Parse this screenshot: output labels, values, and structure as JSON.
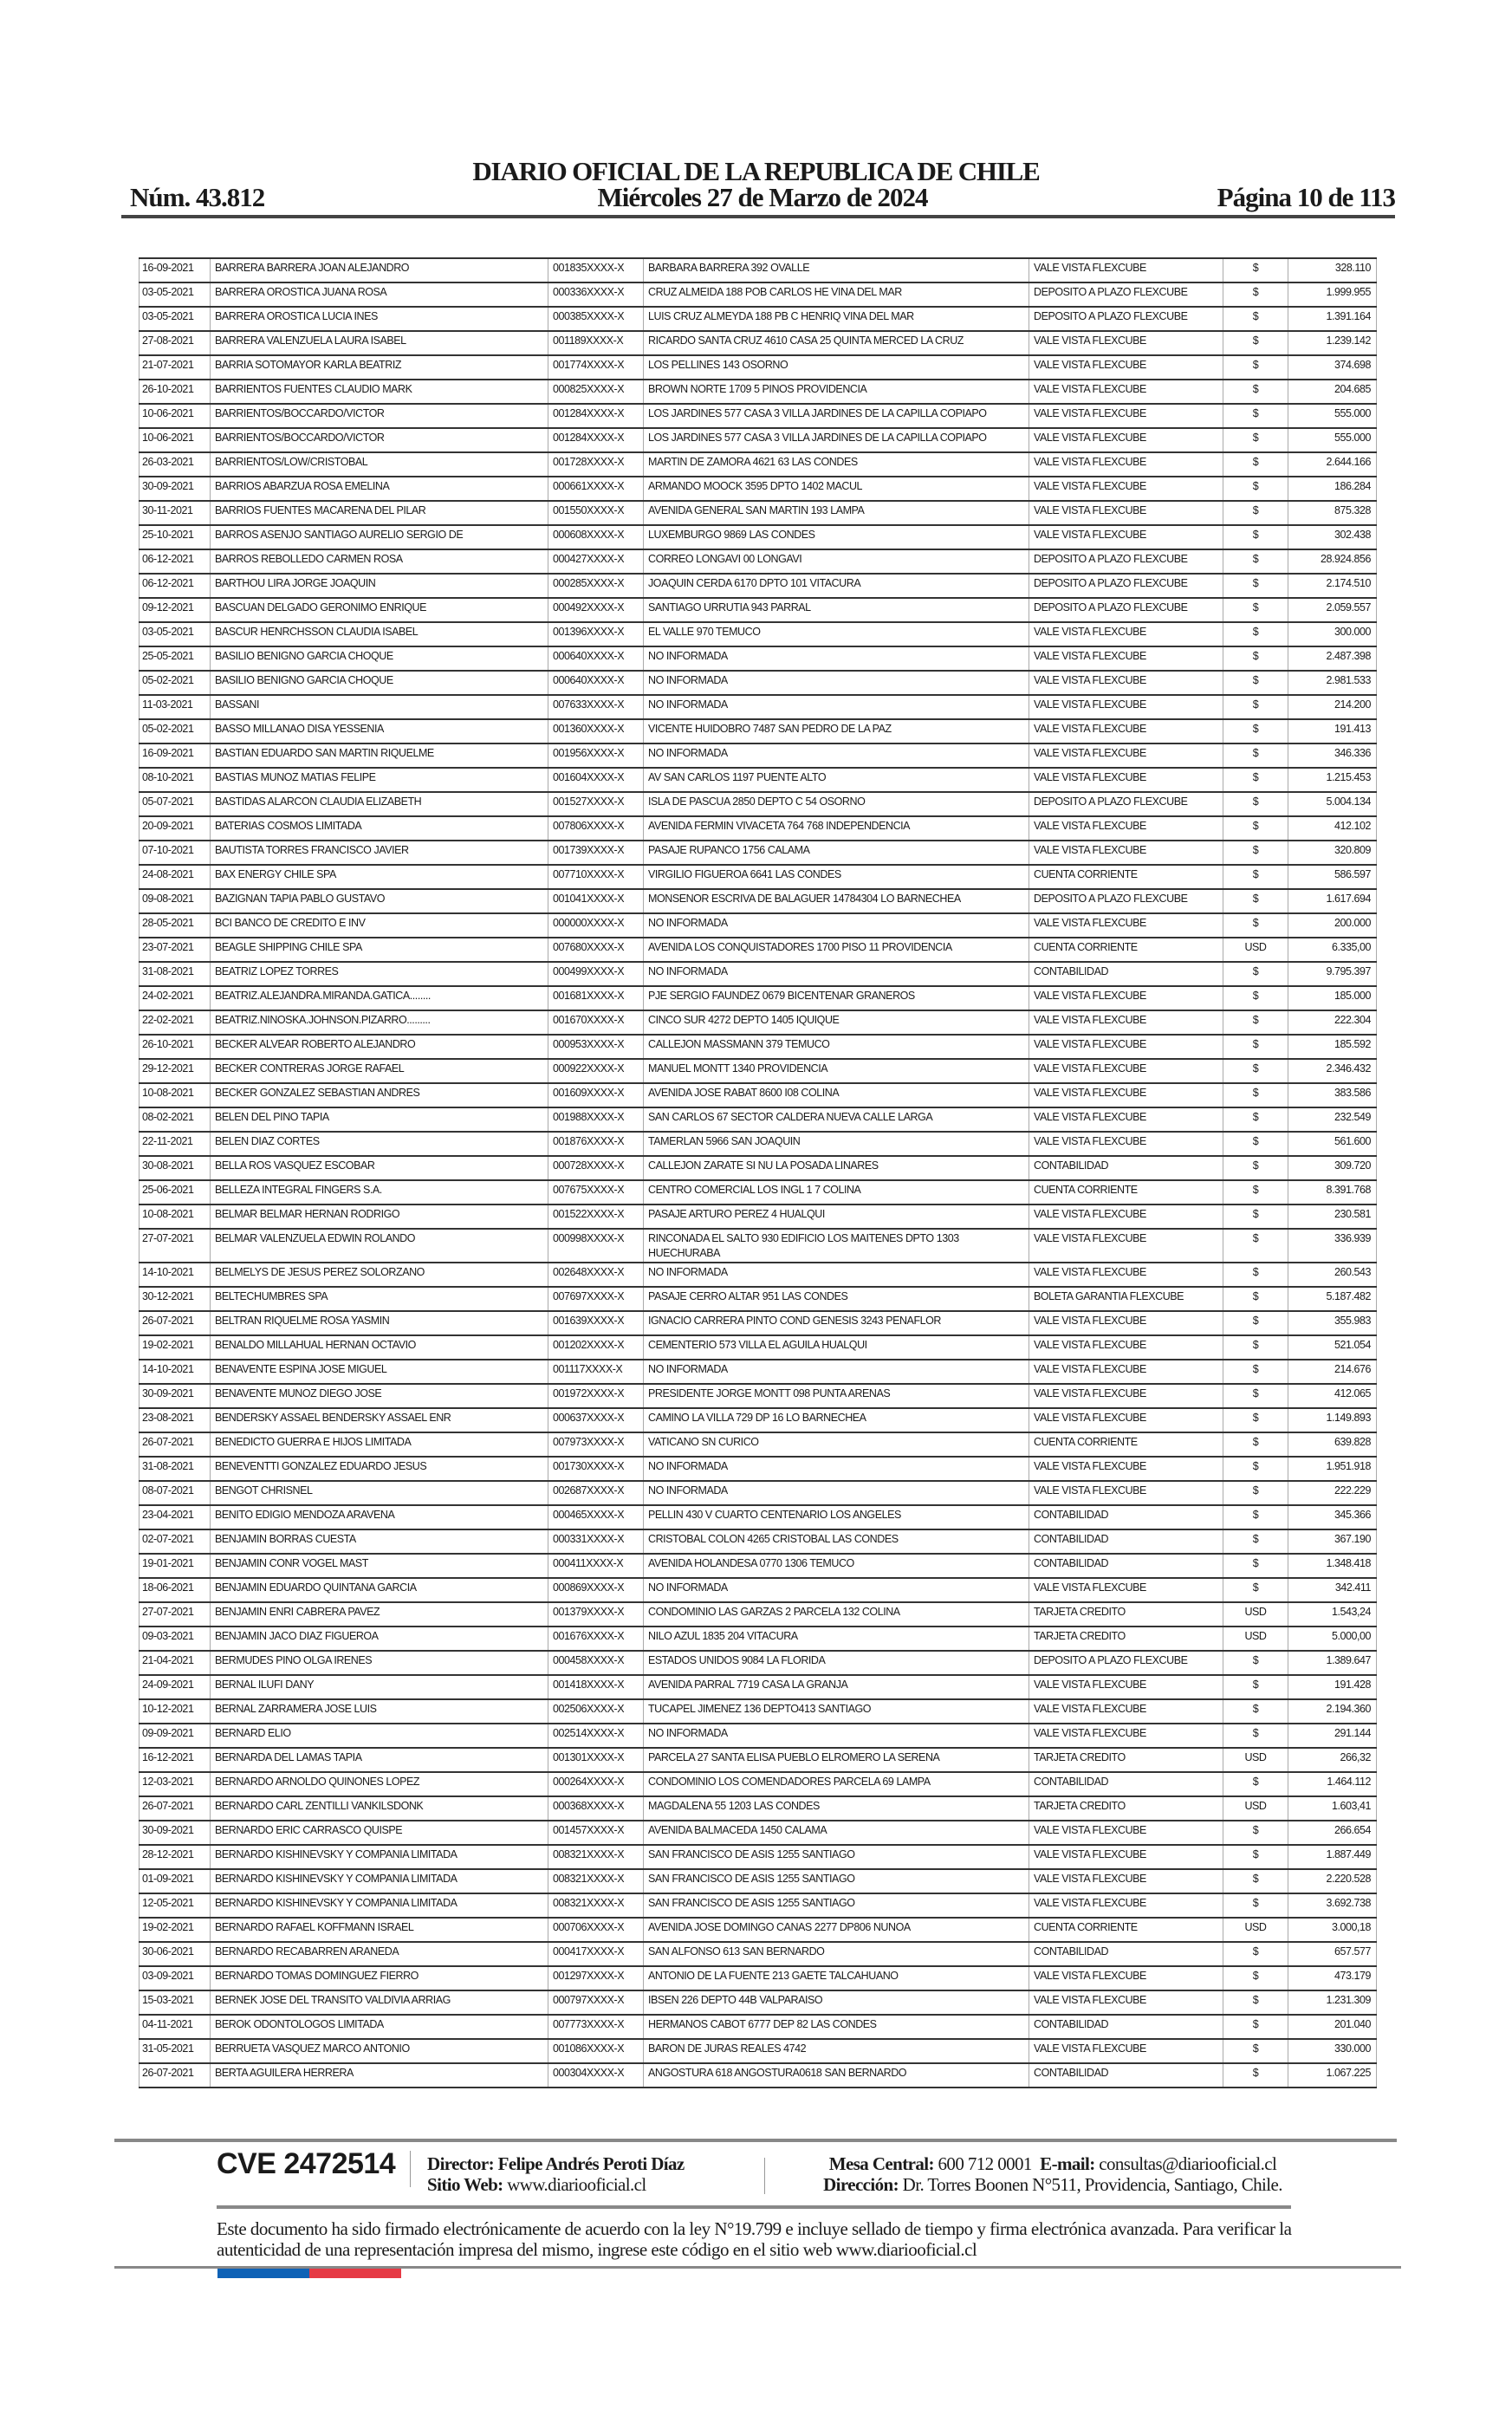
{
  "header": {
    "title": "DIARIO OFICIAL DE LA REPUBLICA DE CHILE",
    "number": "Núm. 43.812",
    "date": "Miércoles 27 de Marzo de 2024",
    "page": "Página 10 de 113"
  },
  "table": {
    "rows": [
      [
        "16-09-2021",
        "BARRERA BARRERA JOAN ALEJANDRO",
        "001835XXXX-X",
        "BARBARA BARRERA 392 OVALLE",
        "VALE VISTA FLEXCUBE",
        "$",
        "328.110"
      ],
      [
        "03-05-2021",
        "BARRERA OROSTICA JUANA ROSA",
        "000336XXXX-X",
        "CRUZ ALMEIDA 188 POB CARLOS HE VINA DEL MAR",
        "DEPOSITO A PLAZO FLEXCUBE",
        "$",
        "1.999.955"
      ],
      [
        "03-05-2021",
        "BARRERA OROSTICA LUCIA INES",
        "000385XXXX-X",
        "LUIS CRUZ ALMEYDA 188 PB C HENRIQ VINA DEL MAR",
        "DEPOSITO A PLAZO FLEXCUBE",
        "$",
        "1.391.164"
      ],
      [
        "27-08-2021",
        "BARRERA VALENZUELA LAURA ISABEL",
        "001189XXXX-X",
        "RICARDO SANTA CRUZ 4610 CASA 25 QUINTA MERCED LA CRUZ",
        "VALE VISTA FLEXCUBE",
        "$",
        "1.239.142"
      ],
      [
        "21-07-2021",
        "BARRIA SOTOMAYOR KARLA BEATRIZ",
        "001774XXXX-X",
        "LOS PELLINES 143 OSORNO",
        "VALE VISTA FLEXCUBE",
        "$",
        "374.698"
      ],
      [
        "26-10-2021",
        "BARRIENTOS FUENTES CLAUDIO MARK",
        "000825XXXX-X",
        "BROWN NORTE 1709 5 PINOS PROVIDENCIA",
        "VALE VISTA FLEXCUBE",
        "$",
        "204.685"
      ],
      [
        "10-06-2021",
        "BARRIENTOS/BOCCARDO/VICTOR",
        "001284XXXX-X",
        "LOS JARDINES 577 CASA 3 VILLA JARDINES DE LA CAPILLA COPIAPO",
        "VALE VISTA FLEXCUBE",
        "$",
        "555.000"
      ],
      [
        "10-06-2021",
        "BARRIENTOS/BOCCARDO/VICTOR",
        "001284XXXX-X",
        "LOS JARDINES 577 CASA 3 VILLA JARDINES DE LA CAPILLA COPIAPO",
        "VALE VISTA FLEXCUBE",
        "$",
        "555.000"
      ],
      [
        "26-03-2021",
        "BARRIENTOS/LOW/CRISTOBAL",
        "001728XXXX-X",
        "MARTIN DE ZAMORA 4621 63 LAS CONDES",
        "VALE VISTA FLEXCUBE",
        "$",
        "2.644.166"
      ],
      [
        "30-09-2021",
        "BARRIOS ABARZUA ROSA EMELINA",
        "000661XXXX-X",
        "ARMANDO MOOCK 3595 DPTO 1402 MACUL",
        "VALE VISTA FLEXCUBE",
        "$",
        "186.284"
      ],
      [
        "30-11-2021",
        "BARRIOS FUENTES MACARENA DEL PILAR",
        "001550XXXX-X",
        "AVENIDA GENERAL SAN MARTIN 193 LAMPA",
        "VALE VISTA FLEXCUBE",
        "$",
        "875.328"
      ],
      [
        "25-10-2021",
        "BARROS ASENJO SANTIAGO AURELIO SERGIO DE",
        "000608XXXX-X",
        "LUXEMBURGO 9869 LAS CONDES",
        "VALE VISTA FLEXCUBE",
        "$",
        "302.438"
      ],
      [
        "06-12-2021",
        "BARROS REBOLLEDO CARMEN ROSA",
        "000427XXXX-X",
        "CORREO LONGAVI 00 LONGAVI",
        "DEPOSITO A PLAZO FLEXCUBE",
        "$",
        "28.924.856"
      ],
      [
        "06-12-2021",
        "BARTHOU LIRA JORGE JOAQUIN",
        "000285XXXX-X",
        "JOAQUIN CERDA 6170 DPTO 101 VITACURA",
        "DEPOSITO A PLAZO FLEXCUBE",
        "$",
        "2.174.510"
      ],
      [
        "09-12-2021",
        "BASCUAN DELGADO GERONIMO ENRIQUE",
        "000492XXXX-X",
        "SANTIAGO URRUTIA 943 PARRAL",
        "DEPOSITO A PLAZO FLEXCUBE",
        "$",
        "2.059.557"
      ],
      [
        "03-05-2021",
        "BASCUR HENRCHSSON CLAUDIA ISABEL",
        "001396XXXX-X",
        "EL VALLE 970 TEMUCO",
        "VALE VISTA FLEXCUBE",
        "$",
        "300.000"
      ],
      [
        "25-05-2021",
        "BASILIO BENIGNO GARCIA CHOQUE",
        "000640XXXX-X",
        "NO INFORMADA",
        "VALE VISTA FLEXCUBE",
        "$",
        "2.487.398"
      ],
      [
        "05-02-2021",
        "BASILIO BENIGNO GARCIA CHOQUE",
        "000640XXXX-X",
        "NO INFORMADA",
        "VALE VISTA FLEXCUBE",
        "$",
        "2.981.533"
      ],
      [
        "11-03-2021",
        "BASSANI",
        "007633XXXX-X",
        "NO INFORMADA",
        "VALE VISTA FLEXCUBE",
        "$",
        "214.200"
      ],
      [
        "05-02-2021",
        "BASSO MILLANAO DISA YESSENIA",
        "001360XXXX-X",
        "VICENTE HUIDOBRO 7487 SAN PEDRO DE LA PAZ",
        "VALE VISTA FLEXCUBE",
        "$",
        "191.413"
      ],
      [
        "16-09-2021",
        "BASTIAN EDUARDO SAN MARTIN RIQUELME",
        "001956XXXX-X",
        "NO INFORMADA",
        "VALE VISTA FLEXCUBE",
        "$",
        "346.336"
      ],
      [
        "08-10-2021",
        "BASTIAS MUNOZ MATIAS FELIPE",
        "001604XXXX-X",
        "AV SAN CARLOS 1197 PUENTE ALTO",
        "VALE VISTA FLEXCUBE",
        "$",
        "1.215.453"
      ],
      [
        "05-07-2021",
        "BASTIDAS ALARCON CLAUDIA ELIZABETH",
        "001527XXXX-X",
        "ISLA DE PASCUA 2850 DEPTO C 54 OSORNO",
        "DEPOSITO A PLAZO FLEXCUBE",
        "$",
        "5.004.134"
      ],
      [
        "20-09-2021",
        "BATERIAS COSMOS LIMITADA",
        "007806XXXX-X",
        "AVENIDA FERMIN VIVACETA 764 768 INDEPENDENCIA",
        "VALE VISTA FLEXCUBE",
        "$",
        "412.102"
      ],
      [
        "07-10-2021",
        "BAUTISTA TORRES FRANCISCO JAVIER",
        "001739XXXX-X",
        "PASAJE RUPANCO 1756 CALAMA",
        "VALE VISTA FLEXCUBE",
        "$",
        "320.809"
      ],
      [
        "24-08-2021",
        "BAX ENERGY CHILE SPA",
        "007710XXXX-X",
        "VIRGILIO FIGUEROA 6641 LAS CONDES",
        "CUENTA CORRIENTE",
        "$",
        "586.597"
      ],
      [
        "09-08-2021",
        "BAZIGNAN TAPIA PABLO GUSTAVO",
        "001041XXXX-X",
        "MONSENOR ESCRIVA DE BALAGUER 14784304 LO BARNECHEA",
        "DEPOSITO A PLAZO FLEXCUBE",
        "$",
        "1.617.694"
      ],
      [
        "28-05-2021",
        "BCI BANCO DE CREDITO E INV",
        "000000XXXX-X",
        "NO INFORMADA",
        "VALE VISTA FLEXCUBE",
        "$",
        "200.000"
      ],
      [
        "23-07-2021",
        "BEAGLE SHIPPING CHILE SPA",
        "007680XXXX-X",
        "AVENIDA LOS CONQUISTADORES 1700 PISO 11 PROVIDENCIA",
        "CUENTA CORRIENTE",
        "USD",
        "6.335,00"
      ],
      [
        "31-08-2021",
        "BEATRIZ LOPEZ TORRES",
        "000499XXXX-X",
        "NO INFORMADA",
        "CONTABILIDAD",
        "$",
        "9.795.397"
      ],
      [
        "24-02-2021",
        "BEATRIZ.ALEJANDRA.MIRANDA.GATICA........",
        "001681XXXX-X",
        "PJE SERGIO FAUNDEZ 0679 BICENTENAR GRANEROS",
        "VALE VISTA FLEXCUBE",
        "$",
        "185.000"
      ],
      [
        "22-02-2021",
        "BEATRIZ.NINOSKA.JOHNSON.PIZARRO.........",
        "001670XXXX-X",
        "CINCO SUR 4272 DEPTO 1405 IQUIQUE",
        "VALE VISTA FLEXCUBE",
        "$",
        "222.304"
      ],
      [
        "26-10-2021",
        "BECKER ALVEAR ROBERTO ALEJANDRO",
        "000953XXXX-X",
        "CALLEJON MASSMANN 379 TEMUCO",
        "VALE VISTA FLEXCUBE",
        "$",
        "185.592"
      ],
      [
        "29-12-2021",
        "BECKER CONTRERAS JORGE RAFAEL",
        "000922XXXX-X",
        "MANUEL MONTT 1340 PROVIDENCIA",
        "VALE VISTA FLEXCUBE",
        "$",
        "2.346.432"
      ],
      [
        "10-08-2021",
        "BECKER GONZALEZ SEBASTIAN ANDRES",
        "001609XXXX-X",
        "AVENIDA JOSE RABAT 8600 I08 COLINA",
        "VALE VISTA FLEXCUBE",
        "$",
        "383.586"
      ],
      [
        "08-02-2021",
        "BELEN DEL PINO TAPIA",
        "001988XXXX-X",
        "SAN CARLOS 67 SECTOR CALDERA NUEVA CALLE LARGA",
        "VALE VISTA FLEXCUBE",
        "$",
        "232.549"
      ],
      [
        "22-11-2021",
        "BELEN DIAZ CORTES",
        "001876XXXX-X",
        "TAMERLAN 5966 SAN JOAQUIN",
        "VALE VISTA FLEXCUBE",
        "$",
        "561.600"
      ],
      [
        "30-08-2021",
        "BELLA ROS VASQUEZ ESCOBAR",
        "000728XXXX-X",
        "CALLEJON ZARATE SI NU LA POSADA LINARES",
        "CONTABILIDAD",
        "$",
        "309.720"
      ],
      [
        "25-06-2021",
        "BELLEZA INTEGRAL FINGERS S.A.",
        "007675XXXX-X",
        "CENTRO COMERCIAL LOS INGL 1 7 COLINA",
        "CUENTA CORRIENTE",
        "$",
        "8.391.768"
      ],
      [
        "10-08-2021",
        "BELMAR BELMAR HERNAN RODRIGO",
        "001522XXXX-X",
        "PASAJE ARTURO PEREZ 4 HUALQUI",
        "VALE VISTA FLEXCUBE",
        "$",
        "230.581"
      ],
      [
        "27-07-2021",
        "BELMAR VALENZUELA EDWIN ROLANDO",
        "000998XXXX-X",
        "RINCONADA EL SALTO 930 EDIFICIO LOS MAITENES DPTO 1303 HUECHURABA",
        "VALE VISTA FLEXCUBE",
        "$",
        "336.939"
      ],
      [
        "14-10-2021",
        "BELMELYS DE JESUS PEREZ SOLORZANO",
        "002648XXXX-X",
        "NO INFORMADA",
        "VALE VISTA FLEXCUBE",
        "$",
        "260.543"
      ],
      [
        "30-12-2021",
        "BELTECHUMBRES SPA",
        "007697XXXX-X",
        "PASAJE CERRO ALTAR 951 LAS CONDES",
        "BOLETA GARANTIA FLEXCUBE",
        "$",
        "5.187.482"
      ],
      [
        "26-07-2021",
        "BELTRAN RIQUELME ROSA YASMIN",
        "001639XXXX-X",
        "IGNACIO CARRERA PINTO COND GENESIS 3243 PENAFLOR",
        "VALE VISTA FLEXCUBE",
        "$",
        "355.983"
      ],
      [
        "19-02-2021",
        "BENALDO MILLAHUAL HERNAN OCTAVIO",
        "001202XXXX-X",
        "CEMENTERIO 573 VILLA EL AGUILA HUALQUI",
        "VALE VISTA FLEXCUBE",
        "$",
        "521.054"
      ],
      [
        "14-10-2021",
        "BENAVENTE ESPINA JOSE MIGUEL",
        "001117XXXX-X",
        "NO INFORMADA",
        "VALE VISTA FLEXCUBE",
        "$",
        "214.676"
      ],
      [
        "30-09-2021",
        "BENAVENTE MUNOZ DIEGO JOSE",
        "001972XXXX-X",
        "PRESIDENTE JORGE MONTT 098 PUNTA ARENAS",
        "VALE VISTA FLEXCUBE",
        "$",
        "412.065"
      ],
      [
        "23-08-2021",
        "BENDERSKY ASSAEL BENDERSKY ASSAEL ENR",
        "000637XXXX-X",
        "CAMINO LA VILLA 729 DP 16 LO BARNECHEA",
        "VALE VISTA FLEXCUBE",
        "$",
        "1.149.893"
      ],
      [
        "26-07-2021",
        "BENEDICTO GUERRA E HIJOS LIMITADA",
        "007973XXXX-X",
        "VATICANO SN CURICO",
        "CUENTA CORRIENTE",
        "$",
        "639.828"
      ],
      [
        "31-08-2021",
        "BENEVENTTI GONZALEZ EDUARDO JESUS",
        "001730XXXX-X",
        "NO INFORMADA",
        "VALE VISTA FLEXCUBE",
        "$",
        "1.951.918"
      ],
      [
        "08-07-2021",
        "BENGOT CHRISNEL",
        "002687XXXX-X",
        "NO INFORMADA",
        "VALE VISTA FLEXCUBE",
        "$",
        "222.229"
      ],
      [
        "23-04-2021",
        "BENITO EDIGIO MENDOZA ARAVENA",
        "000465XXXX-X",
        "PELLIN 430 V CUARTO CENTENARIO LOS ANGELES",
        "CONTABILIDAD",
        "$",
        "345.366"
      ],
      [
        "02-07-2021",
        "BENJAMIN BORRAS CUESTA",
        "000331XXXX-X",
        "CRISTOBAL COLON 4265 CRISTOBAL LAS CONDES",
        "CONTABILIDAD",
        "$",
        "367.190"
      ],
      [
        "19-01-2021",
        "BENJAMIN CONR VOGEL MAST",
        "000411XXXX-X",
        "AVENIDA HOLANDESA 0770 1306 TEMUCO",
        "CONTABILIDAD",
        "$",
        "1.348.418"
      ],
      [
        "18-06-2021",
        "BENJAMIN EDUARDO QUINTANA GARCIA",
        "000869XXXX-X",
        "NO INFORMADA",
        "VALE VISTA FLEXCUBE",
        "$",
        "342.411"
      ],
      [
        "27-07-2021",
        "BENJAMIN ENRI CABRERA PAVEZ",
        "001379XXXX-X",
        "CONDOMINIO LAS GARZAS 2 PARCELA 132 COLINA",
        "TARJETA CREDITO",
        "USD",
        "1.543,24"
      ],
      [
        "09-03-2021",
        "BENJAMIN JACO DIAZ FIGUEROA",
        "001676XXXX-X",
        "NILO AZUL 1835 204 VITACURA",
        "TARJETA CREDITO",
        "USD",
        "5.000,00"
      ],
      [
        "21-04-2021",
        "BERMUDES PINO OLGA IRENES",
        "000458XXXX-X",
        "ESTADOS UNIDOS 9084 LA FLORIDA",
        "DEPOSITO A PLAZO FLEXCUBE",
        "$",
        "1.389.647"
      ],
      [
        "24-09-2021",
        "BERNAL ILUFI DANY",
        "001418XXXX-X",
        "AVENIDA PARRAL 7719 CASA LA GRANJA",
        "VALE VISTA FLEXCUBE",
        "$",
        "191.428"
      ],
      [
        "10-12-2021",
        "BERNAL ZARRAMERA JOSE LUIS",
        "002506XXXX-X",
        "TUCAPEL JIMENEZ 136 DEPTO413 SANTIAGO",
        "VALE VISTA FLEXCUBE",
        "$",
        "2.194.360"
      ],
      [
        "09-09-2021",
        "BERNARD ELIO",
        "002514XXXX-X",
        "NO INFORMADA",
        "VALE VISTA FLEXCUBE",
        "$",
        "291.144"
      ],
      [
        "16-12-2021",
        "BERNARDA DEL LAMAS TAPIA",
        "001301XXXX-X",
        "PARCELA 27 SANTA ELISA PUEBLO ELROMERO LA SERENA",
        "TARJETA CREDITO",
        "USD",
        "266,32"
      ],
      [
        "12-03-2021",
        "BERNARDO ARNOLDO QUINONES LOPEZ",
        "000264XXXX-X",
        "CONDOMINIO LOS COMENDADORES PARCELA 69 LAMPA",
        "CONTABILIDAD",
        "$",
        "1.464.112"
      ],
      [
        "26-07-2021",
        "BERNARDO CARL ZENTILLI VANKILSDONK",
        "000368XXXX-X",
        "MAGDALENA 55 1203 LAS CONDES",
        "TARJETA CREDITO",
        "USD",
        "1.603,41"
      ],
      [
        "30-09-2021",
        "BERNARDO ERIC CARRASCO QUISPE",
        "001457XXXX-X",
        "AVENIDA BALMACEDA 1450 CALAMA",
        "VALE VISTA FLEXCUBE",
        "$",
        "266.654"
      ],
      [
        "28-12-2021",
        "BERNARDO KISHINEVSKY Y COMPANIA LIMITADA",
        "008321XXXX-X",
        "SAN FRANCISCO DE ASIS 1255 SANTIAGO",
        "VALE VISTA FLEXCUBE",
        "$",
        "1.887.449"
      ],
      [
        "01-09-2021",
        "BERNARDO KISHINEVSKY Y COMPANIA LIMITADA",
        "008321XXXX-X",
        "SAN FRANCISCO DE ASIS 1255 SANTIAGO",
        "VALE VISTA FLEXCUBE",
        "$",
        "2.220.528"
      ],
      [
        "12-05-2021",
        "BERNARDO KISHINEVSKY Y COMPANIA LIMITADA",
        "008321XXXX-X",
        "SAN FRANCISCO DE ASIS 1255 SANTIAGO",
        "VALE VISTA FLEXCUBE",
        "$",
        "3.692.738"
      ],
      [
        "19-02-2021",
        "BERNARDO RAFAEL KOFFMANN ISRAEL",
        "000706XXXX-X",
        "AVENIDA JOSE DOMINGO CANAS 2277 DP806 NUNOA",
        "CUENTA CORRIENTE",
        "USD",
        "3.000,18"
      ],
      [
        "30-06-2021",
        "BERNARDO RECABARREN ARANEDA",
        "000417XXXX-X",
        "SAN ALFONSO 613 SAN BERNARDO",
        "CONTABILIDAD",
        "$",
        "657.577"
      ],
      [
        "03-09-2021",
        "BERNARDO TOMAS DOMINGUEZ FIERRO",
        "001297XXXX-X",
        "ANTONIO DE LA FUENTE 213 GAETE TALCAHUANO",
        "VALE VISTA FLEXCUBE",
        "$",
        "473.179"
      ],
      [
        "15-03-2021",
        "BERNEK JOSE DEL TRANSITO VALDIVIA ARRIAG",
        "000797XXXX-X",
        "IBSEN 226 DEPTO 44B VALPARAISO",
        "VALE VISTA FLEXCUBE",
        "$",
        "1.231.309"
      ],
      [
        "04-11-2021",
        "BEROK ODONTOLOGOS LIMITADA",
        "007773XXXX-X",
        "HERMANOS CABOT 6777 DEP 82 LAS CONDES",
        "CONTABILIDAD",
        "$",
        "201.040"
      ],
      [
        "31-05-2021",
        "BERRUETA VASQUEZ MARCO ANTONIO",
        "001086XXXX-X",
        "BARON DE JURAS REALES 4742",
        "VALE VISTA FLEXCUBE",
        "$",
        "330.000"
      ],
      [
        "26-07-2021",
        "BERTA AGUILERA HERRERA",
        "000304XXXX-X",
        "ANGOSTURA 618 ANGOSTURA0618 SAN BERNARDO",
        "CONTABILIDAD",
        "$",
        "1.067.225"
      ]
    ]
  },
  "footer": {
    "cve": "CVE 2472514",
    "director_label": "Director:",
    "director_name": "Felipe Andrés Peroti Díaz",
    "web_label": "Sitio Web:",
    "web_value": "www.diariooficial.cl",
    "phone_label": "Mesa Central:",
    "phone_value": "600 712 0001",
    "email_label": "E-mail:",
    "email_value": "consultas@diariooficial.cl",
    "address_label": "Dirección:",
    "address_value": "Dr. Torres Boonen N°511, Providencia, Santiago, Chile.",
    "disclaimer": "Este documento ha sido firmado electrónicamente de acuerdo con la ley N°19.799 e incluye sellado de tiempo y firma electrónica avanzada. Para verificar la autenticidad de una representación impresa del mismo, ingrese este código en el sitio web www.diariooficial.cl",
    "flag_colors": {
      "blue": "#0f62b6",
      "red": "#e63a45"
    }
  }
}
